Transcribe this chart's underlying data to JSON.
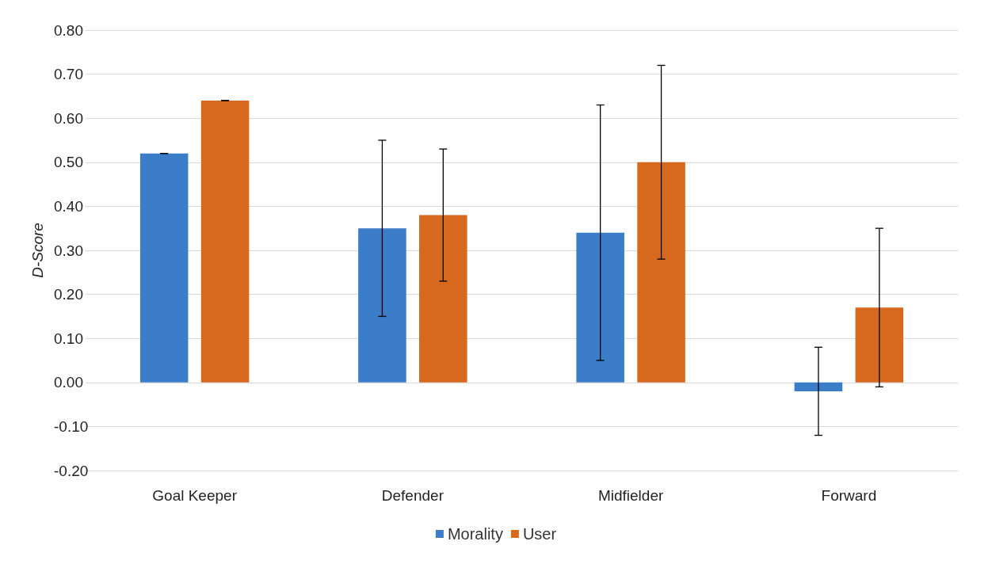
{
  "chart_data": {
    "type": "bar",
    "ylabel": "D-Score",
    "categories": [
      "Goal Keeper",
      "Defender",
      "Midfielder",
      "Forward"
    ],
    "series": [
      {
        "name": "Morality",
        "color": "#3b7dc8",
        "values": [
          0.52,
          0.35,
          0.34,
          -0.02
        ],
        "errors": [
          0,
          0.2,
          0.29,
          0.1
        ]
      },
      {
        "name": "User",
        "color": "#d7691f",
        "values": [
          0.64,
          0.38,
          0.5,
          0.17
        ],
        "errors": [
          0,
          0.15,
          0.22,
          0.18
        ]
      }
    ],
    "ylim": [
      -0.2,
      0.8
    ],
    "yticks": [
      {
        "value": -0.2,
        "label": "-0.20"
      },
      {
        "value": -0.1,
        "label": "-0.10"
      },
      {
        "value": 0,
        "label": "0.00"
      },
      {
        "value": 0.1,
        "label": "0.10"
      },
      {
        "value": 0.2,
        "label": "0.20"
      },
      {
        "value": 0.3,
        "label": "0.30"
      },
      {
        "value": 0.4,
        "label": "0.40"
      },
      {
        "value": 0.5,
        "label": "0.50"
      },
      {
        "value": 0.6,
        "label": "0.60"
      },
      {
        "value": 0.7,
        "label": "0.70"
      },
      {
        "value": 0.8,
        "label": "0.80"
      }
    ],
    "grid": "y",
    "legend": "bottom"
  }
}
